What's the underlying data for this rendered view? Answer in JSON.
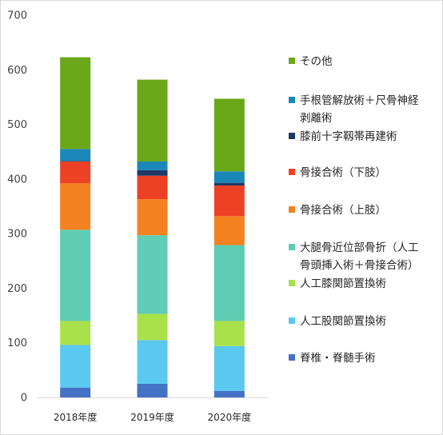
{
  "chart_data": {
    "type": "bar",
    "stacked": true,
    "title": "",
    "xlabel": "",
    "ylabel": "",
    "ylim": [
      0,
      700
    ],
    "yticks": [
      0,
      100,
      200,
      300,
      400,
      500,
      600,
      700
    ],
    "grid": false,
    "legend_position": "right",
    "categories": [
      "2018年度",
      "2019年度",
      "2020年度"
    ],
    "series": [
      {
        "name": "脊椎・脊髄手術",
        "color": "#4472c4",
        "values": [
          18,
          25,
          12
        ]
      },
      {
        "name": "人工股関節置換術",
        "color": "#5bc8f0",
        "values": [
          78,
          80,
          82
        ]
      },
      {
        "name": "人工膝関節置換術",
        "color": "#a9e14b",
        "values": [
          44,
          48,
          46
        ]
      },
      {
        "name": "大腿骨近位部骨折（人工骨頭挿入術＋骨接合術）",
        "color": "#5ecdb3",
        "values": [
          167,
          144,
          139
        ]
      },
      {
        "name": "骨接合術（上肢）",
        "color": "#f58220",
        "values": [
          85,
          66,
          53
        ]
      },
      {
        "name": "骨接合術（下肢）",
        "color": "#ec4124",
        "values": [
          40,
          43,
          56
        ]
      },
      {
        "name": "膝前十字靱帯再建術",
        "color": "#203864",
        "values": [
          1,
          10,
          5
        ]
      },
      {
        "name": "手根管解放術＋尺骨神経剥離術",
        "color": "#1a87b8",
        "values": [
          22,
          16,
          21
        ]
      },
      {
        "name": "その他",
        "color": "#6aa81a",
        "values": [
          168,
          150,
          133
        ]
      }
    ]
  }
}
